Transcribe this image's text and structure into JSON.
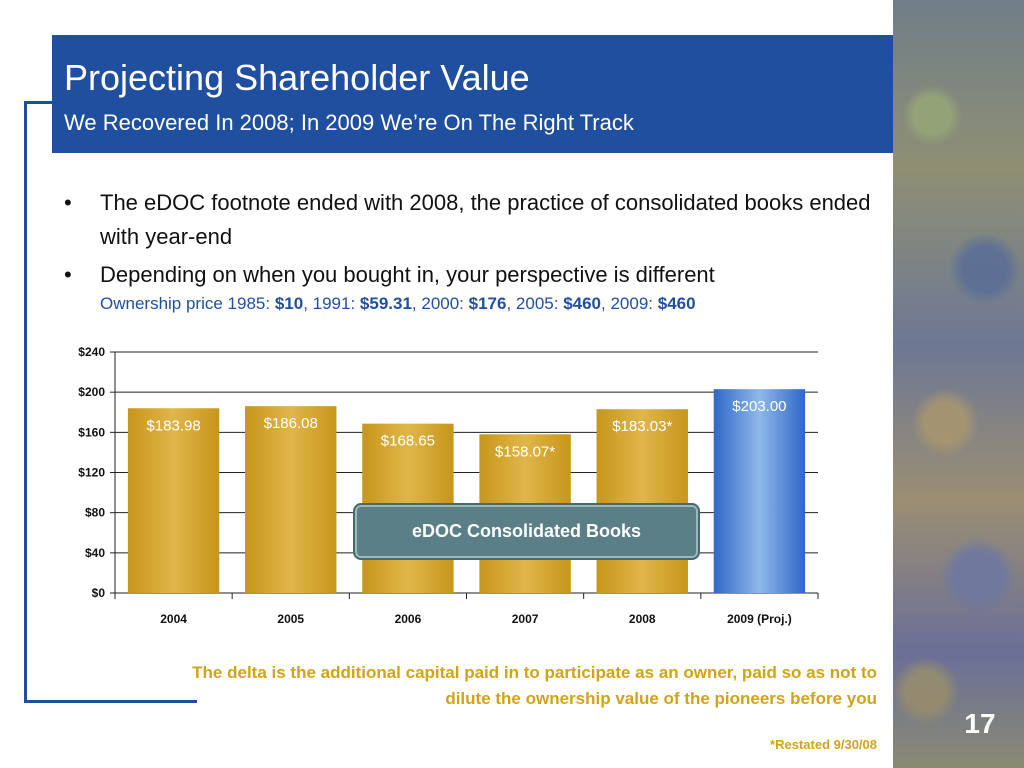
{
  "title": "Projecting Shareholder Value",
  "subtitle": "We Recovered In 2008; In 2009 We’re On The Right Track",
  "bullets": [
    {
      "text": "The eDOC footnote ended with 2008, the practice of consolidated books ended with year-end"
    },
    {
      "text": "Depending on when you bought in, your perspective is different"
    }
  ],
  "ownership": {
    "prefix": "Ownership price 1985: ",
    "v1985": "$10",
    "s1991": ", 1991: ",
    "v1991": "$59.31",
    "s2000": ", 2000: ",
    "v2000": "$176",
    "s2005": ", 2005: ",
    "v2005": "$460",
    "s2009": ", 2009: ",
    "v2009": "$460"
  },
  "callout": "eDOC Consolidated Books",
  "delta_text": "The delta is the additional capital paid in to participate as an owner, paid so as not to dilute the ownership value of the pioneers before you",
  "restated_note": "*Restated 9/30/08",
  "page_number": "17",
  "colors": {
    "title_band": "#1f4f9e",
    "gold": "#d1a418",
    "blue_bar": "#2f67c7",
    "callout": "#5b7f87"
  },
  "chart_data": {
    "type": "bar",
    "categories": [
      "2004",
      "2005",
      "2006",
      "2007",
      "2008",
      "2009 (Proj.)"
    ],
    "values": [
      183.98,
      186.08,
      168.65,
      158.07,
      183.03,
      203.0
    ],
    "data_labels": [
      "$183.98",
      "$186.08",
      "$168.65",
      "$158.07*",
      "$183.03*",
      "$203.00"
    ],
    "bar_styles": [
      "gold",
      "gold",
      "gold",
      "gold",
      "gold",
      "blue"
    ],
    "ylim": [
      0,
      240
    ],
    "yticks": [
      0,
      40,
      80,
      120,
      160,
      200,
      240
    ],
    "ytick_labels": [
      "$0",
      "$40",
      "$80",
      "$120",
      "$160",
      "$200",
      "$240"
    ],
    "grid": true
  }
}
